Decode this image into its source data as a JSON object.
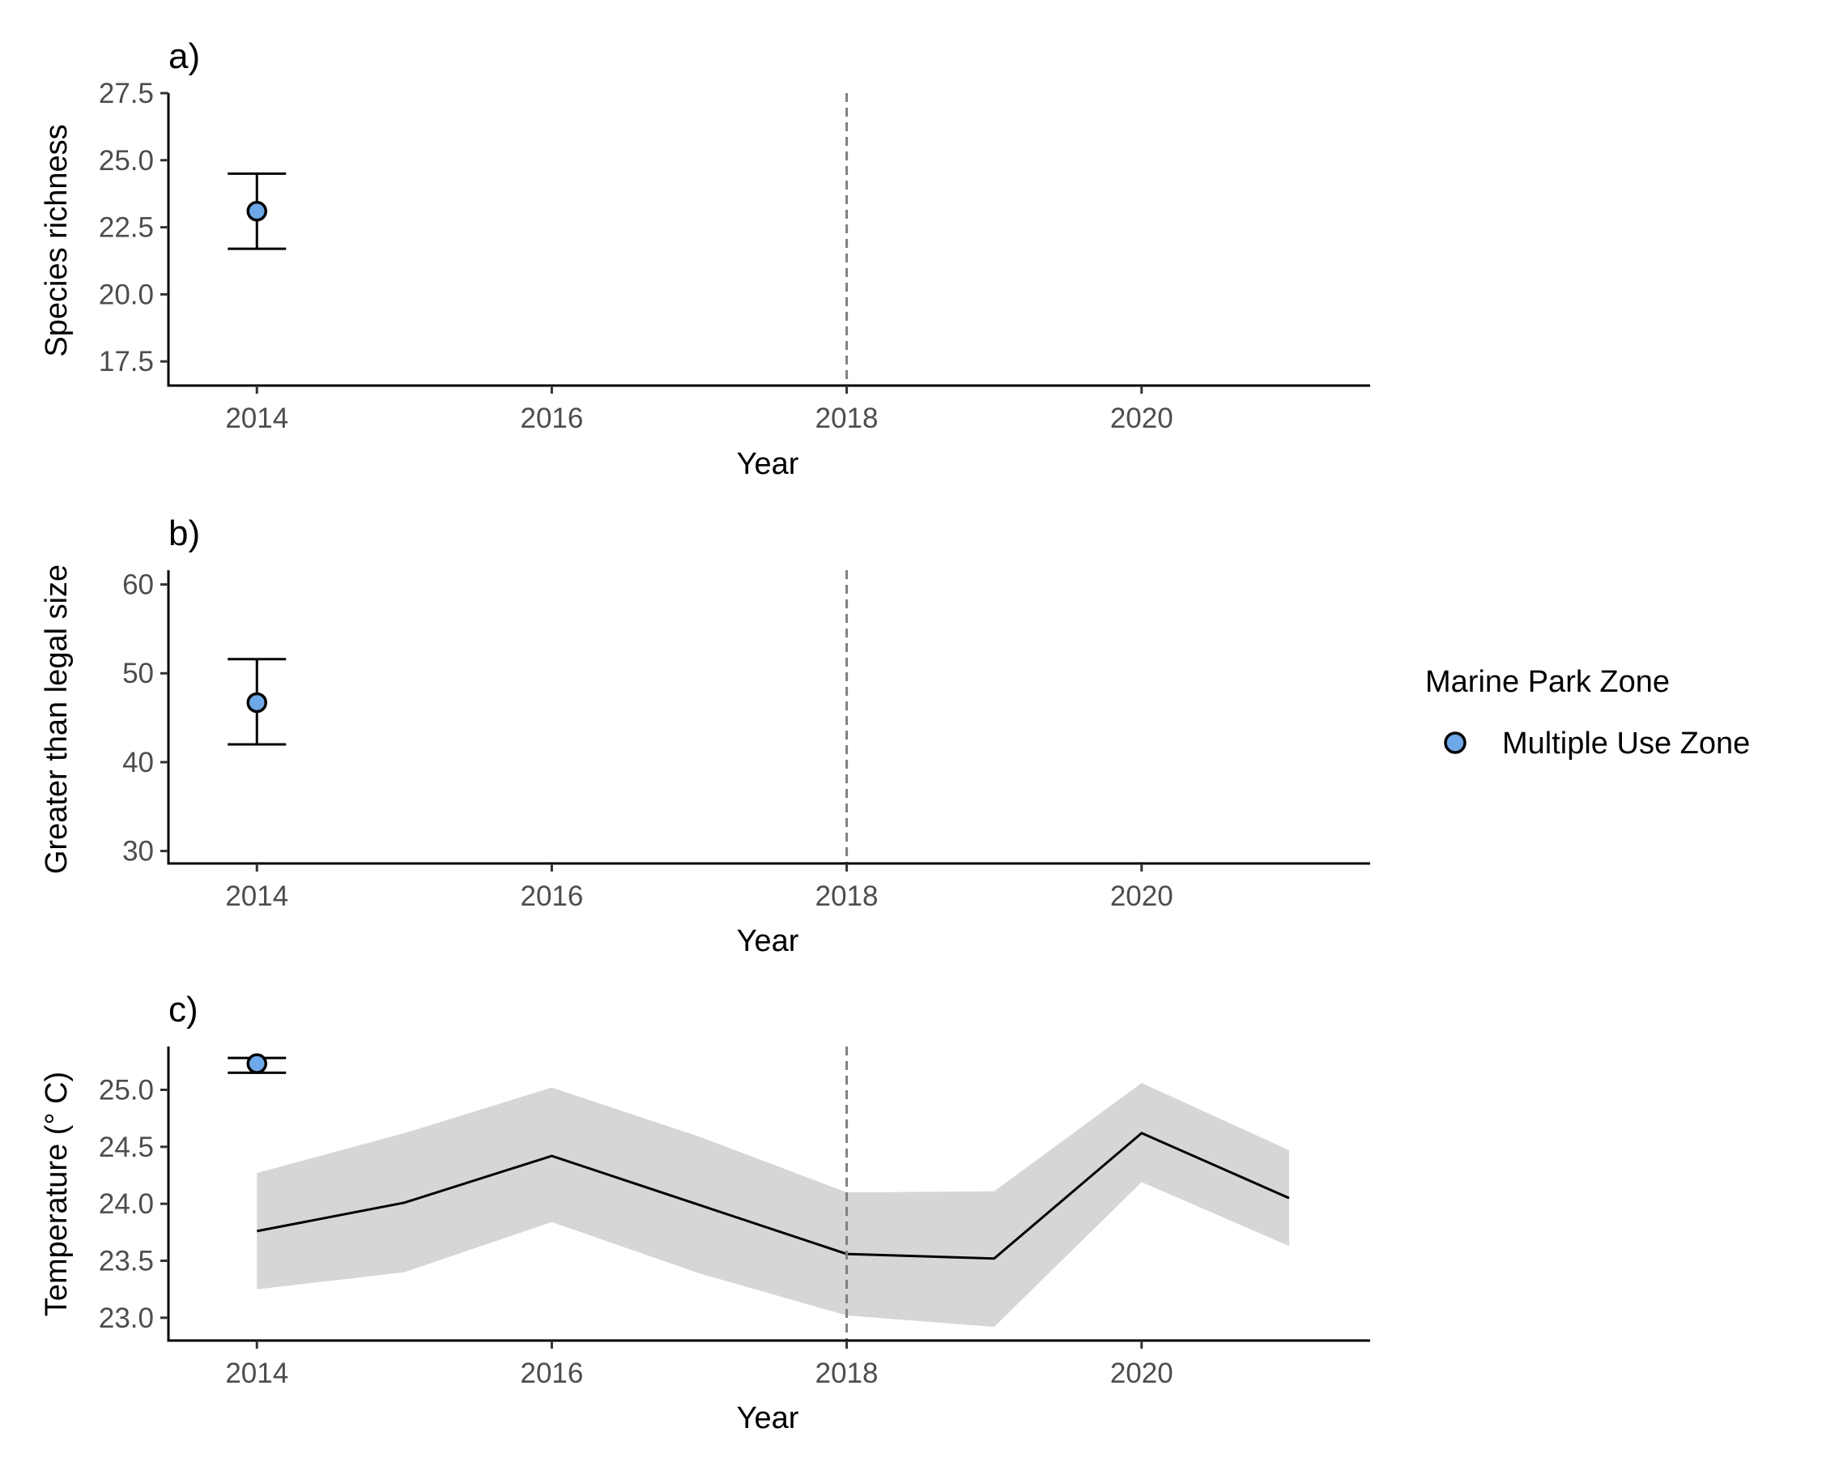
{
  "colors": {
    "point_fill": "#6ea8e8",
    "ribbon": "#d6d6d6",
    "line": "#000000",
    "reference_line": "#7f7f7f"
  },
  "legend": {
    "title": "Marine Park Zone",
    "items": [
      {
        "label": "Multiple Use Zone",
        "icon": "point-icon",
        "color": "#6ea8e8"
      }
    ]
  },
  "chart_data": [
    {
      "panel": "a)",
      "type": "scatter",
      "xlabel": "Year",
      "ylabel": "Species richness",
      "xlim": [
        2013.4,
        2021.55
      ],
      "ylim": [
        16.6,
        27.5
      ],
      "xticks": [
        2014,
        2016,
        2018,
        2020
      ],
      "yticks": [
        17.5,
        20.0,
        22.5,
        25.0,
        27.5
      ],
      "reference_line_x": 2018,
      "series": [
        {
          "name": "Multiple Use Zone",
          "points": [
            {
              "x": 2014,
              "y": 23.1,
              "lower": 21.7,
              "upper": 24.5
            }
          ]
        }
      ]
    },
    {
      "panel": "b)",
      "type": "scatter",
      "xlabel": "Year",
      "ylabel": "Greater than legal size",
      "xlim": [
        2013.4,
        2021.55
      ],
      "ylim": [
        28.6,
        61.6
      ],
      "xticks": [
        2014,
        2016,
        2018,
        2020
      ],
      "yticks": [
        30,
        40,
        50,
        60
      ],
      "reference_line_x": 2018,
      "series": [
        {
          "name": "Multiple Use Zone",
          "points": [
            {
              "x": 2014,
              "y": 46.7,
              "lower": 42.0,
              "upper": 51.6
            }
          ]
        }
      ]
    },
    {
      "panel": "c)",
      "type": "line",
      "xlabel": "Year",
      "ylabel": "Temperature (° C)",
      "xlim": [
        2013.4,
        2021.55
      ],
      "ylim": [
        22.8,
        25.38
      ],
      "xticks": [
        2014,
        2016,
        2018,
        2020
      ],
      "yticks": [
        23.0,
        23.5,
        24.0,
        24.5,
        25.0
      ],
      "reference_line_x": 2018,
      "series": [
        {
          "name": "Multiple Use Zone",
          "points": [
            {
              "x": 2014,
              "y": 25.23,
              "lower": 25.15,
              "upper": 25.28
            }
          ]
        }
      ],
      "line": {
        "x": [
          2014,
          2015,
          2016,
          2017,
          2018,
          2019,
          2020,
          2021
        ],
        "y": [
          23.76,
          24.01,
          24.42,
          23.99,
          23.56,
          23.52,
          24.62,
          24.05
        ],
        "lower": [
          23.25,
          23.4,
          23.84,
          23.39,
          23.02,
          22.92,
          24.19,
          23.63
        ],
        "upper": [
          24.27,
          24.62,
          25.02,
          24.59,
          24.1,
          24.11,
          25.06,
          24.47
        ]
      }
    }
  ]
}
